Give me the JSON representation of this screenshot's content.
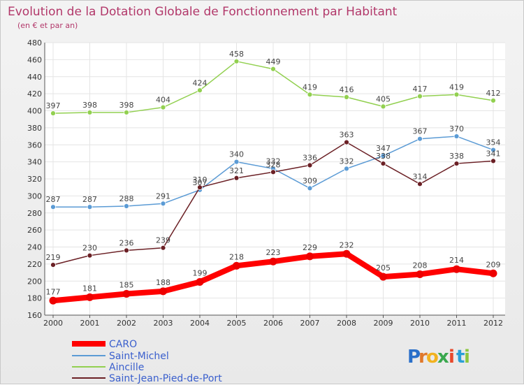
{
  "chart_data": {
    "type": "line",
    "title": "Evolution de la Dotation Globale de Fonctionnement par Habitant",
    "subtitle": "(en € et par an)",
    "xlabel": "",
    "ylabel": "",
    "categories": [
      "2000",
      "2001",
      "2002",
      "2003",
      "2004",
      "2005",
      "2006",
      "2007",
      "2008",
      "2009",
      "2010",
      "2011",
      "2012"
    ],
    "ylim": [
      160,
      480
    ],
    "yticks": [
      160,
      180,
      200,
      220,
      240,
      260,
      280,
      300,
      320,
      340,
      360,
      380,
      400,
      420,
      440,
      460,
      480
    ],
    "grid": true,
    "legend_position": "bottom-left",
    "series": [
      {
        "name": "CARO",
        "color": "#ff0000",
        "values": [
          177,
          181,
          185,
          188,
          199,
          218,
          223,
          229,
          232,
          205,
          208,
          214,
          209
        ]
      },
      {
        "name": "Saint-Michel",
        "color": "#5b9bd5",
        "values": [
          287,
          287,
          288,
          291,
          307,
          340,
          332,
          309,
          332,
          347,
          367,
          370,
          354
        ]
      },
      {
        "name": "Aincille",
        "color": "#92d050",
        "values": [
          397,
          398,
          398,
          404,
          424,
          458,
          449,
          419,
          416,
          405,
          417,
          419,
          412
        ]
      },
      {
        "name": "Saint-Jean-Pied-de-Port",
        "color": "#6b2025",
        "values": [
          219,
          230,
          236,
          239,
          310,
          321,
          328,
          336,
          363,
          338,
          314,
          338,
          341
        ]
      }
    ]
  },
  "brand": {
    "letters": [
      "P",
      "r",
      "o",
      "x",
      "i",
      "t",
      "i"
    ],
    "colors": [
      "#2a6fc9",
      "#e0782a",
      "#f2b21f",
      "#3aa84e",
      "#e8482b",
      "#2a9fd6",
      "#8cc63f"
    ]
  }
}
